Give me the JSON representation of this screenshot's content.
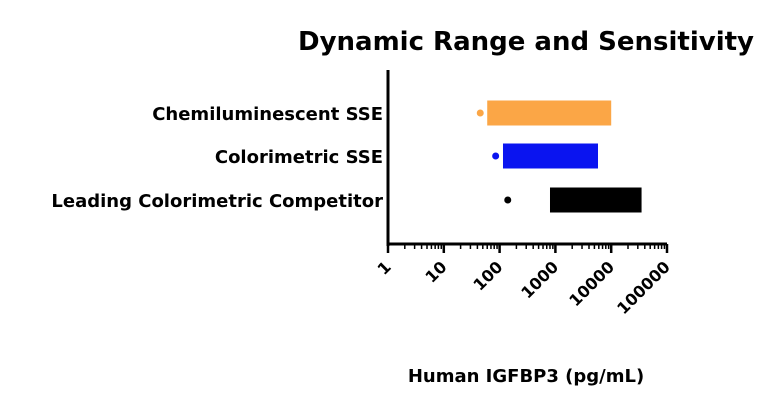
{
  "chart_data": {
    "type": "bar",
    "title": "Dynamic Range and Sensitivity",
    "xlabel": "Human IGFBP3 (pg/mL)",
    "ylabel": "",
    "x_scale": "log",
    "xlim": [
      1,
      100000
    ],
    "x_ticks": [
      "1",
      "10",
      "100",
      "1000",
      "10000",
      "100000"
    ],
    "grid": false,
    "categories": [
      "Chemiluminescent SSE",
      "Colorimetric SSE",
      "Leading Colorimetric Competitor"
    ],
    "ranges": [
      {
        "category": "Chemiluminescent SSE",
        "low": 60,
        "high": 10000,
        "sensitivity": 45,
        "color": "#FBA646"
      },
      {
        "category": "Colorimetric SSE",
        "low": 115,
        "high": 5800,
        "sensitivity": 85,
        "color": "#0A14F0"
      },
      {
        "category": "Leading Colorimetric Competitor",
        "low": 800,
        "high": 35000,
        "sensitivity": 140,
        "color": "#000000"
      }
    ]
  }
}
